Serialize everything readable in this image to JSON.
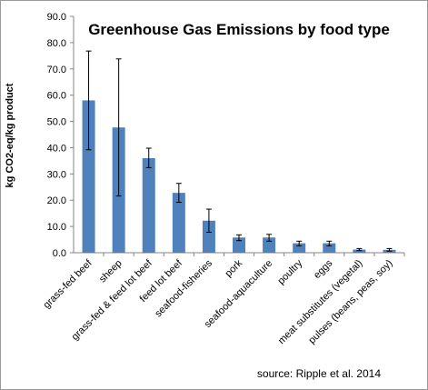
{
  "chart_data": {
    "type": "bar",
    "title": "Greenhouse Gas Emissions by food type",
    "xlabel": "",
    "ylabel": "kg CO2-eq/kg product",
    "ylim": [
      0,
      90
    ],
    "yticks": [
      "0.0",
      "10.0",
      "20.0",
      "30.0",
      "40.0",
      "50.0",
      "60.0",
      "70.0",
      "80.0",
      "90.0"
    ],
    "categories": [
      "grass-fed beef",
      "sheep",
      "grass-fed & feed lot beef",
      "feed lot beef",
      "seafood-fisheries",
      "pork",
      "seafood-aquaculture",
      "poultry",
      "eggs",
      "meat substitutes (vegetal)",
      "pulses (beans, peas, soy)"
    ],
    "values": [
      58.0,
      47.7,
      36.0,
      22.8,
      12.2,
      5.8,
      5.8,
      3.6,
      3.6,
      1.2,
      1.1
    ],
    "error_low": [
      39.2,
      21.6,
      32.4,
      19.2,
      7.8,
      4.6,
      4.4,
      2.6,
      2.6,
      0.8,
      0.6
    ],
    "error_high": [
      76.8,
      73.8,
      39.8,
      26.4,
      16.6,
      6.8,
      7.0,
      4.4,
      4.4,
      1.6,
      1.6
    ],
    "bar_color": "#4f81bd",
    "grid": false,
    "legend": "none",
    "annotation": "source: Ripple et al. 2014"
  }
}
